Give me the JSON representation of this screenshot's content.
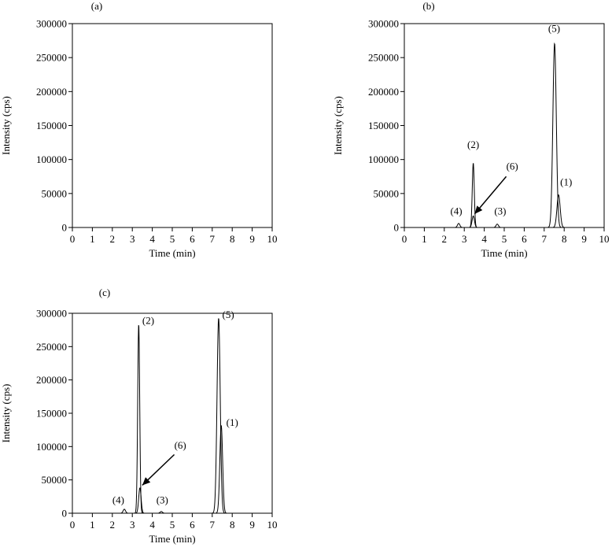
{
  "chart_data": [
    {
      "panel_label": "(a)",
      "type": "line",
      "xlabel": "Time (min)",
      "ylabel": "Intensity (cps)",
      "xlim": [
        0,
        10
      ],
      "ylim": [
        0,
        300000
      ],
      "xticks": [
        "0",
        "1",
        "2",
        "3",
        "4",
        "5",
        "6",
        "7",
        "8",
        "9",
        "10"
      ],
      "yticks": [
        "0",
        "50000",
        "100000",
        "150000",
        "200000",
        "250000",
        "300000"
      ],
      "series": [],
      "peak_labels": [],
      "arrow": null
    },
    {
      "panel_label": "(b)",
      "type": "line",
      "xlabel": "Time (min)",
      "ylabel": "Intensity (cps)",
      "xlim": [
        0,
        10
      ],
      "ylim": [
        0,
        300000
      ],
      "xticks": [
        "0",
        "1",
        "2",
        "3",
        "4",
        "5",
        "6",
        "7",
        "8",
        "9",
        "10"
      ],
      "yticks": [
        "0",
        "50000",
        "100000",
        "150000",
        "200000",
        "250000",
        "300000"
      ],
      "series": [
        {
          "peaks": [
            {
              "t": 2.72,
              "h": 6000,
              "w": 0.06
            },
            {
              "t": 3.45,
              "h": 95000,
              "w": 0.05
            },
            {
              "t": 4.65,
              "h": 5000,
              "w": 0.06
            },
            {
              "t": 7.52,
              "h": 271000,
              "w": 0.085
            }
          ]
        },
        {
          "peaks": [
            {
              "t": 3.45,
              "h": 17000,
              "w": 0.06
            },
            {
              "t": 7.72,
              "h": 48000,
              "w": 0.08
            }
          ]
        }
      ],
      "peak_labels": [
        {
          "text": "(4)",
          "x": 2.6,
          "y": 19000
        },
        {
          "text": "(2)",
          "x": 3.45,
          "y": 117000
        },
        {
          "text": "(3)",
          "x": 4.8,
          "y": 19000
        },
        {
          "text": "(5)",
          "x": 7.5,
          "y": 288000
        },
        {
          "text": "(1)",
          "x": 8.1,
          "y": 62000
        },
        {
          "text": "(6)",
          "x": 5.4,
          "y": 85000
        }
      ],
      "arrow": {
        "from": [
          5.1,
          75000
        ],
        "to": [
          3.52,
          20000
        ]
      }
    },
    {
      "panel_label": "(c)",
      "type": "line",
      "xlabel": "Time (min)",
      "ylabel": "Intensity (cps)",
      "xlim": [
        0,
        10
      ],
      "ylim": [
        0,
        300000
      ],
      "xticks": [
        "0",
        "1",
        "2",
        "3",
        "4",
        "5",
        "6",
        "7",
        "8",
        "9",
        "10"
      ],
      "yticks": [
        "0",
        "50000",
        "100000",
        "150000",
        "200000",
        "250000",
        "300000"
      ],
      "series": [
        {
          "peaks": [
            {
              "t": 2.6,
              "h": 6000,
              "w": 0.06
            },
            {
              "t": 3.32,
              "h": 284000,
              "w": 0.05
            },
            {
              "t": 4.45,
              "h": 2500,
              "w": 0.06
            },
            {
              "t": 7.32,
              "h": 293000,
              "w": 0.08
            }
          ]
        },
        {
          "peaks": [
            {
              "t": 3.38,
              "h": 38000,
              "w": 0.06
            },
            {
              "t": 7.45,
              "h": 132000,
              "w": 0.07
            }
          ]
        }
      ],
      "peak_labels": [
        {
          "text": "(4)",
          "x": 2.3,
          "y": 15000
        },
        {
          "text": "(2)",
          "x": 3.8,
          "y": 284000
        },
        {
          "text": "(3)",
          "x": 4.5,
          "y": 15000
        },
        {
          "text": "(5)",
          "x": 7.8,
          "y": 293000
        },
        {
          "text": "(1)",
          "x": 8.0,
          "y": 131000
        },
        {
          "text": "(6)",
          "x": 5.4,
          "y": 97000
        }
      ],
      "arrow": {
        "from": [
          5.1,
          88000
        ],
        "to": [
          3.5,
          42000
        ]
      }
    }
  ]
}
